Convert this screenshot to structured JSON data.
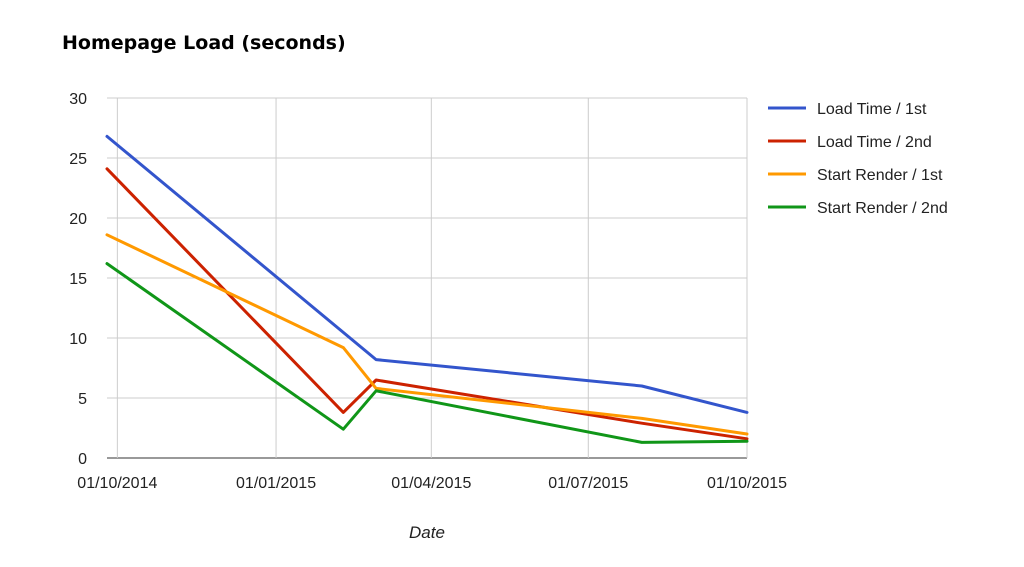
{
  "chart_data": {
    "type": "line",
    "title": "Homepage Load (seconds)",
    "xlabel": "Date",
    "ylabel": "",
    "x_type": "date",
    "xlim": [
      "2014-09-25",
      "2015-10-01"
    ],
    "ylim": [
      0,
      30
    ],
    "x_ticks": [
      {
        "label": "01/10/2014",
        "date": "2014-10-01"
      },
      {
        "label": "01/01/2015",
        "date": "2015-01-01"
      },
      {
        "label": "01/04/2015",
        "date": "2015-04-01"
      },
      {
        "label": "01/07/2015",
        "date": "2015-07-01"
      },
      {
        "label": "01/10/2015",
        "date": "2015-10-01"
      }
    ],
    "y_ticks": [
      0,
      5,
      10,
      15,
      20,
      25,
      30
    ],
    "grid": true,
    "legend_position": "right",
    "series": [
      {
        "name": "Load Time / 1st",
        "color": "#3355cc",
        "points": [
          [
            "2014-09-25",
            26.8
          ],
          [
            "2015-02-28",
            8.2
          ],
          [
            "2015-08-01",
            6.0
          ],
          [
            "2015-10-01",
            3.8
          ]
        ]
      },
      {
        "name": "Load Time / 2nd",
        "color": "#cc2200",
        "points": [
          [
            "2014-09-25",
            24.1
          ],
          [
            "2015-02-09",
            3.8
          ],
          [
            "2015-02-28",
            6.5
          ],
          [
            "2015-08-01",
            2.9
          ],
          [
            "2015-10-01",
            1.6
          ]
        ]
      },
      {
        "name": "Start Render / 1st",
        "color": "#ff9900",
        "points": [
          [
            "2014-09-25",
            18.6
          ],
          [
            "2015-02-09",
            9.2
          ],
          [
            "2015-02-28",
            5.8
          ],
          [
            "2015-08-01",
            3.3
          ],
          [
            "2015-10-01",
            2.0
          ]
        ]
      },
      {
        "name": "Start Render / 2nd",
        "color": "#109618",
        "points": [
          [
            "2014-09-25",
            16.2
          ],
          [
            "2015-02-09",
            2.4
          ],
          [
            "2015-02-28",
            5.6
          ],
          [
            "2015-08-01",
            1.3
          ],
          [
            "2015-10-01",
            1.4
          ]
        ]
      }
    ]
  }
}
